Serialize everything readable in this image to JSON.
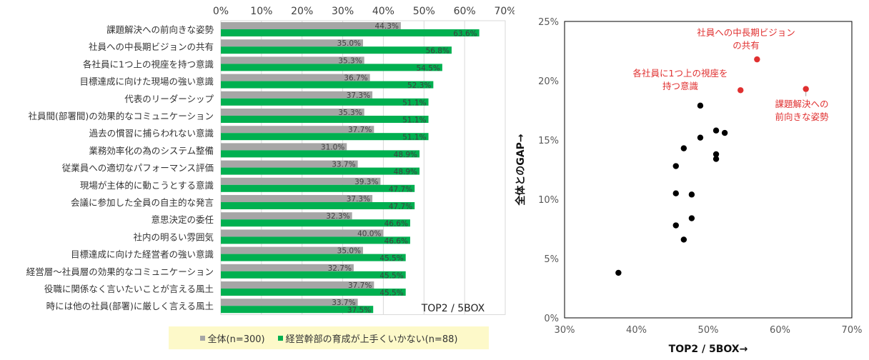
{
  "chart_data": [
    {
      "type": "bar",
      "orientation": "horizontal",
      "categories": [
        "課題解決への前向きな姿勢",
        "社員への中長期ビジョンの共有",
        "各社員に1つ上の視座を持つ意識",
        "目標達成に向けた現場の強い意識",
        "代表のリーダーシップ",
        "社員間(部署間)の効果的なコミュニケーション",
        "過去の慣習に捕らわれない意識",
        "業務効率化の為のシステム整備",
        "従業員への適切なパフォーマンス評価",
        "現場が主体的に動こうとする意識",
        "会議に参加した全員の自主的な発言",
        "意思決定の委任",
        "社内の明るい雰囲気",
        "目標達成に向けた経営者の強い意識",
        "経営層～社員層の効果的なコミュニケーション",
        "役職に関係なく言いたいことが言える風土",
        "時には他の社員(部署)に厳しく言える風土"
      ],
      "series": [
        {
          "name": "全体(n=300)",
          "color": "#a6a6a6",
          "values": [
            44.3,
            35.0,
            35.3,
            36.7,
            37.3,
            35.3,
            37.7,
            31.0,
            33.7,
            39.3,
            37.3,
            32.3,
            40.0,
            35.0,
            32.7,
            37.7,
            33.7
          ],
          "labels": [
            "44.3%",
            "35.0%",
            "35.3%",
            "36.7%",
            "37.3%",
            "35.3%",
            "37.7%",
            "31.0%",
            "33.7%",
            "39.3%",
            "37.3%",
            "32.3%",
            "40.0%",
            "35.0%",
            "32.7%",
            "37.7%",
            "33.7%"
          ]
        },
        {
          "name": "経営幹部の育成が上手くいかない(n=88)",
          "color": "#00b050",
          "values": [
            63.6,
            56.8,
            54.5,
            52.3,
            51.1,
            51.1,
            51.1,
            48.9,
            48.9,
            47.7,
            47.7,
            46.6,
            46.6,
            45.5,
            45.5,
            45.5,
            37.5
          ],
          "labels": [
            "63.6%",
            "56.8%",
            "54.5%",
            "52.3%",
            "51.1%",
            "51.1%",
            "51.1%",
            "48.9%",
            "48.9%",
            "47.7%",
            "47.7%",
            "46.6%",
            "46.6%",
            "45.5%",
            "45.5%",
            "45.5%",
            "37.5%"
          ]
        }
      ],
      "xlim": [
        0,
        70
      ],
      "xticks": [
        "0%",
        "10%",
        "20%",
        "30%",
        "40%",
        "50%",
        "60%",
        "70%"
      ],
      "annotation": "TOP2 / 5BOX",
      "legend_position": "bottom",
      "grid": true
    },
    {
      "type": "scatter",
      "xlabel": "TOP2 / 5BOX→",
      "ylabel": "全体とのGAP→",
      "xlim": [
        30,
        70
      ],
      "ylim": [
        0,
        25
      ],
      "xticks": [
        "30%",
        "40%",
        "50%",
        "60%",
        "70%"
      ],
      "yticks": [
        "0%",
        "5%",
        "10%",
        "15%",
        "20%",
        "25%"
      ],
      "grid": false,
      "points": [
        {
          "x": 63.6,
          "y": 19.3,
          "highlight": true
        },
        {
          "x": 56.8,
          "y": 21.8,
          "highlight": true
        },
        {
          "x": 54.5,
          "y": 19.2,
          "highlight": true
        },
        {
          "x": 52.3,
          "y": 15.6
        },
        {
          "x": 51.1,
          "y": 13.8
        },
        {
          "x": 51.1,
          "y": 15.8
        },
        {
          "x": 51.1,
          "y": 13.4
        },
        {
          "x": 48.9,
          "y": 17.9
        },
        {
          "x": 48.9,
          "y": 15.2
        },
        {
          "x": 47.7,
          "y": 8.4
        },
        {
          "x": 47.7,
          "y": 10.4
        },
        {
          "x": 46.6,
          "y": 14.3
        },
        {
          "x": 46.6,
          "y": 6.6
        },
        {
          "x": 45.5,
          "y": 10.5
        },
        {
          "x": 45.5,
          "y": 12.8
        },
        {
          "x": 45.5,
          "y": 7.8
        },
        {
          "x": 37.5,
          "y": 3.8
        }
      ],
      "annotations": [
        {
          "lines": [
            "社員への中長期ビジョン",
            "の共有"
          ],
          "point": 1
        },
        {
          "lines": [
            "各社員に1つ上の視座を",
            "持つ意識"
          ],
          "point": 2
        },
        {
          "lines": [
            "課題解決への",
            "前向きな姿勢"
          ],
          "point": 0
        }
      ],
      "highlight_color": "#e03030",
      "point_color": "#000000"
    }
  ]
}
